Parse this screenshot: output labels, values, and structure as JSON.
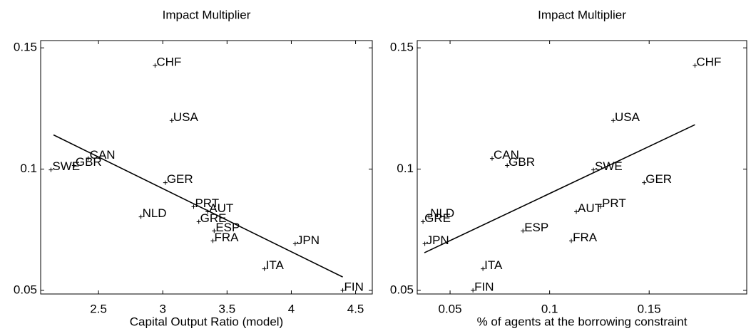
{
  "chart_data": [
    {
      "type": "scatter",
      "title": "Impact Multiplier",
      "xlabel": "Capital Output Ratio (model)",
      "labels": [
        "CHF",
        "USA",
        "CAN",
        "GBR",
        "SWE",
        "GER",
        "NLD",
        "PRT",
        "AUT",
        "GRE",
        "ESP",
        "FRA",
        "JPN",
        "ITA",
        "FIN"
      ],
      "x": [
        2.94,
        3.07,
        2.42,
        2.31,
        2.13,
        3.02,
        2.83,
        3.24,
        3.35,
        3.28,
        3.4,
        3.39,
        4.03,
        3.79,
        4.4
      ],
      "y": [
        0.1427,
        0.12,
        0.1044,
        0.1015,
        0.0997,
        0.0944,
        0.0803,
        0.0845,
        0.0824,
        0.0783,
        0.0745,
        0.0704,
        0.0692,
        0.0589,
        0.05
      ],
      "fit_line": {
        "x": [
          2.15,
          4.4
        ],
        "y": [
          0.1141,
          0.0555
        ]
      },
      "color": "#000000",
      "xlim": [
        2.05,
        4.63
      ],
      "ylim": [
        0.0485,
        0.153
      ],
      "xticks": [
        2.5,
        3,
        3.5,
        4,
        4.5
      ],
      "yticks": [
        0.05,
        0.1,
        0.15
      ]
    },
    {
      "type": "scatter",
      "title": "Impact Multiplier",
      "xlabel": "% of agents at the borrowing constraint",
      "labels": [
        "CHF",
        "USA",
        "CAN",
        "GBR",
        "SWE",
        "GER",
        "NLD",
        "GRE",
        "JPN",
        "ESP",
        "AUT",
        "PRT",
        "FRA",
        "ITA",
        "FIN"
      ],
      "x": [
        0.173,
        0.132,
        0.0711,
        0.0787,
        0.122,
        0.1475,
        0.0393,
        0.0364,
        0.0373,
        0.0866,
        0.1134,
        0.1256,
        0.1109,
        0.0665,
        0.0615
      ],
      "y": [
        0.1427,
        0.12,
        0.1044,
        0.1015,
        0.0997,
        0.0944,
        0.0803,
        0.0783,
        0.0692,
        0.0745,
        0.0824,
        0.0845,
        0.0704,
        0.0589,
        0.05
      ],
      "fit_line": {
        "x": [
          0.0371,
          0.173
        ],
        "y": [
          0.0655,
          0.1183
        ]
      },
      "color": "#000000",
      "xlim": [
        0.0335,
        0.199
      ],
      "ylim": [
        0.0485,
        0.153
      ],
      "xticks": [
        0.05,
        0.1,
        0.15
      ],
      "yticks": [
        0.05,
        0.1,
        0.15
      ]
    }
  ]
}
